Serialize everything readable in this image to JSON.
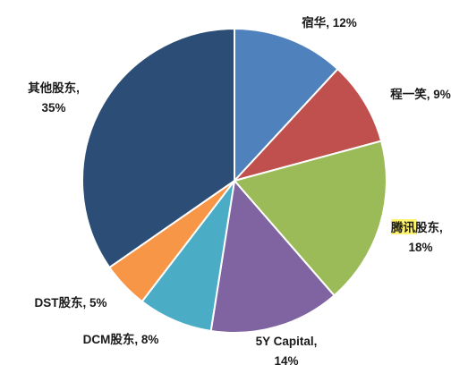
{
  "chart_data": {
    "type": "pie",
    "title": "",
    "slices": [
      {
        "label": "宿华",
        "value": 12,
        "text": "12%",
        "color": "#4f81bd"
      },
      {
        "label": "程一笑",
        "value": 9,
        "text": "9%",
        "color": "#c0504d"
      },
      {
        "label": "腾讯股东",
        "label_highlight": "腾讯",
        "label_rest": "股东",
        "value": 18,
        "text": "18%",
        "color": "#9bbb59"
      },
      {
        "label": "5Y Capital",
        "value": 14,
        "text": "14%",
        "color": "#8064a2"
      },
      {
        "label": "DCM股东",
        "value": 8,
        "text": "8%",
        "color": "#4bacc6"
      },
      {
        "label": "DST股东",
        "value": 5,
        "text": "5%",
        "color": "#f79646"
      },
      {
        "label": "其他股东",
        "value": 35,
        "text": "35%",
        "color": "#2c4d75"
      }
    ],
    "start_angle": "12 o'clock",
    "direction": "clockwise"
  }
}
